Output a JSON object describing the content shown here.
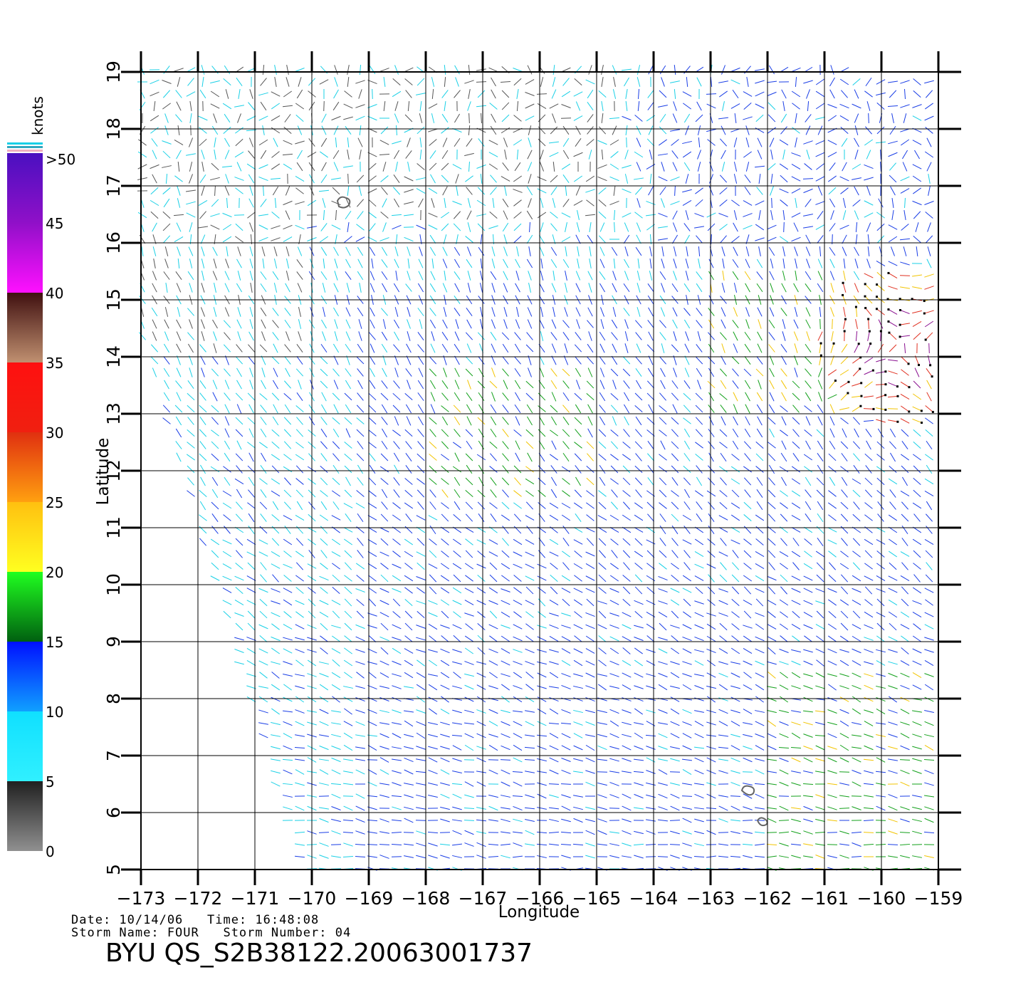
{
  "map": {
    "colorbar": {
      "unit": "knots",
      "labels": [
        ">50",
        "45",
        "40",
        "35",
        "30",
        "25",
        "20",
        "15",
        "10",
        "5",
        "0"
      ]
    },
    "axes": {
      "x_title": "Longitude",
      "y_title": "Latitude",
      "lon_range": [
        -173,
        -159
      ],
      "lat_range": [
        5,
        19
      ],
      "lon_ticks": [
        "−173",
        "−172",
        "−171",
        "−170",
        "−169",
        "−168",
        "−167",
        "−166",
        "−165",
        "−164",
        "−163",
        "−162",
        "−161",
        "−160",
        "−159"
      ],
      "lat_ticks": [
        "5",
        "6",
        "7",
        "8",
        "9",
        "10",
        "11",
        "12",
        "13",
        "14",
        "15",
        "16",
        "17",
        "18",
        "19"
      ],
      "grid": true
    },
    "footer": {
      "date_line": "Date: 10/14/06   Time: 16:48:08",
      "storm_line": "Storm Name: FOUR   Storm Number: 04",
      "title": "BYU QS_S2B38122.20063001737"
    },
    "colors": {
      "calm": "#555555",
      "light": "#19d0e6",
      "moderate": "#1a3ee6",
      "fresh": "#12a01a",
      "strong": "#f2c400",
      "gale": "#e03020",
      "storm": "#8a1090"
    }
  }
}
